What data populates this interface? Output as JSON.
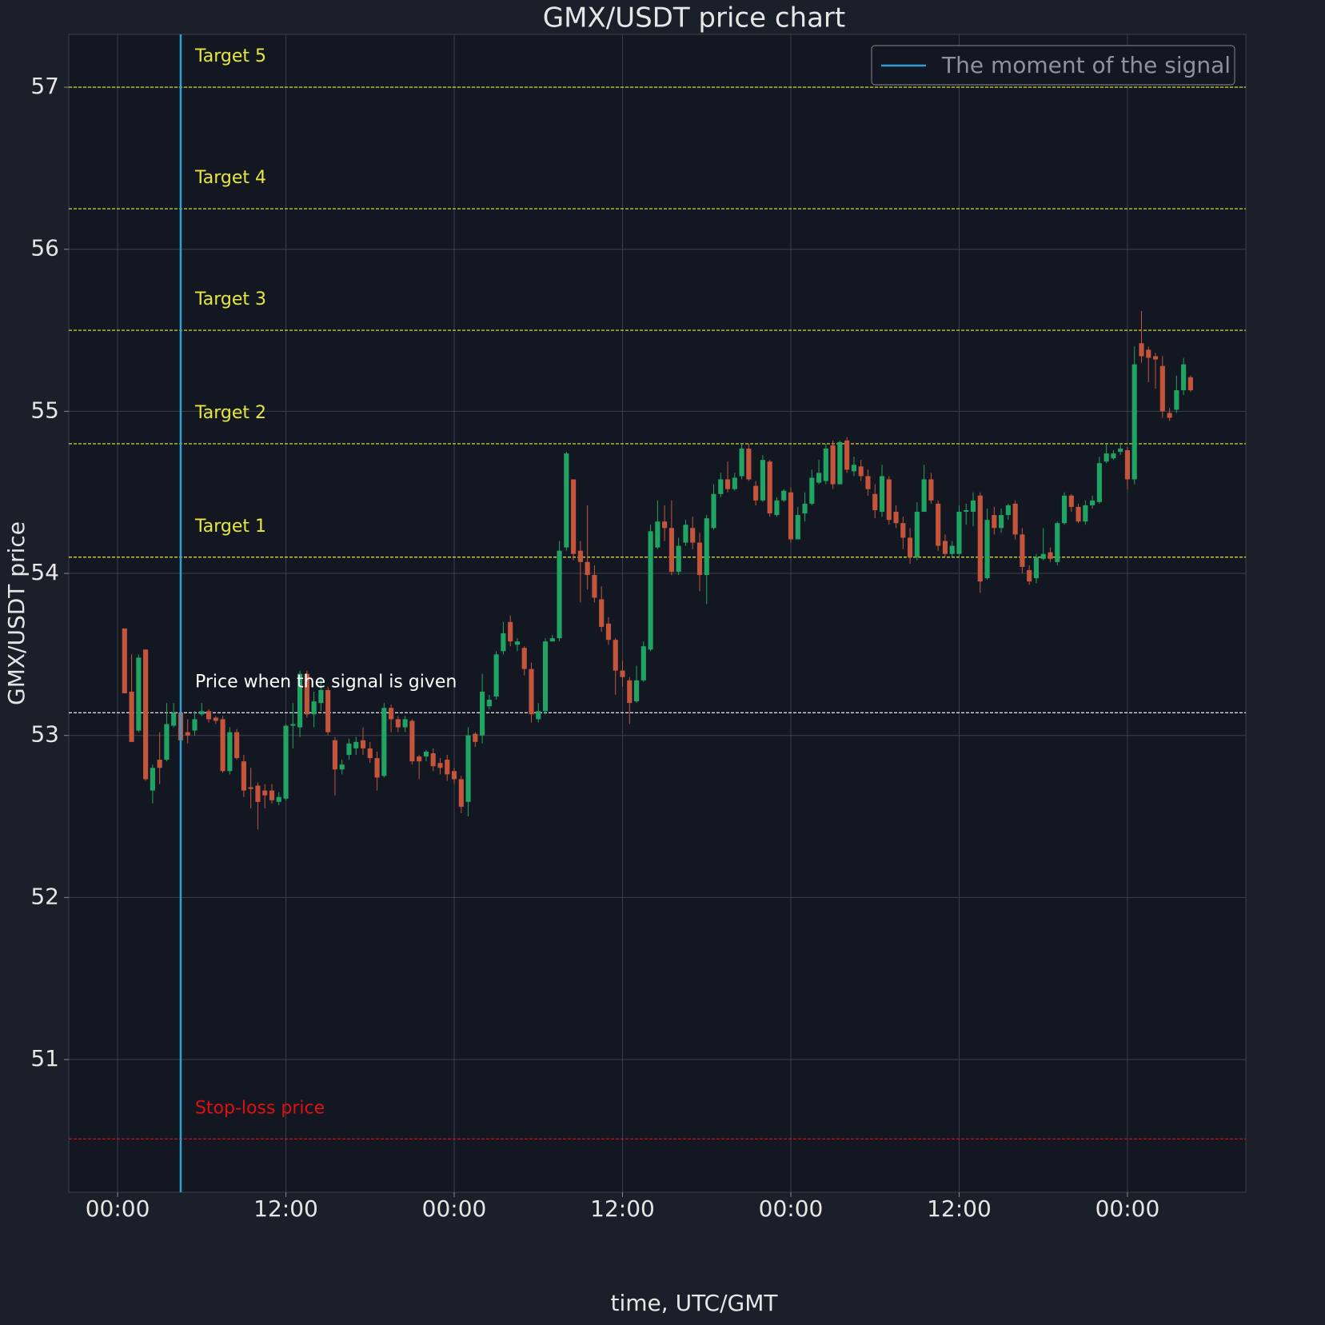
{
  "chart_data": {
    "type": "candlestick",
    "title": "GMX/USDT price chart",
    "xlabel": "time, UTC/GMT",
    "ylabel": "GMX/USDT price",
    "xlim": [
      -3.48,
      80.44
    ],
    "ylim": [
      50.181,
      57.326
    ],
    "xticks": [
      {
        "value": 0,
        "label": "00:00"
      },
      {
        "value": 12,
        "label": "12:00"
      },
      {
        "value": 24,
        "label": "00:00"
      },
      {
        "value": 36,
        "label": "12:00"
      },
      {
        "value": 48,
        "label": "00:00"
      },
      {
        "value": 60,
        "label": "12:00"
      },
      {
        "value": 72,
        "label": "00:00"
      }
    ],
    "yticks": [
      51,
      52,
      53,
      54,
      55,
      56,
      57
    ],
    "grid": true,
    "legend_position": "upper right",
    "up_color": "#1fa463",
    "down_color": "#c4553c",
    "signal": {
      "name": "The moment of the signal",
      "x": 4.5,
      "color": "#2e9fda"
    },
    "levels": [
      {
        "label": "Target 5",
        "value": 57.0,
        "color": "#e8e83c"
      },
      {
        "label": "Target 4",
        "value": 56.25,
        "color": "#e8e83c"
      },
      {
        "label": "Target 3",
        "value": 55.5,
        "color": "#e8e83c"
      },
      {
        "label": "Target 2",
        "value": 54.8,
        "color": "#e8e83c"
      },
      {
        "label": "Target 1",
        "value": 54.1,
        "color": "#e8e83c"
      },
      {
        "label": "Price when the signal is given",
        "value": 53.14,
        "color": "#ffffff"
      },
      {
        "label": "Stop-loss price",
        "value": 50.51,
        "color": "#e01010"
      }
    ],
    "series": [
      {
        "x": [
          0.5,
          1,
          1.5,
          2,
          2.5,
          3,
          3.5,
          4,
          4.5,
          5,
          5.5,
          6,
          6.5,
          7,
          7.5,
          8,
          8.5,
          9,
          9.5,
          10,
          10.5,
          11,
          11.5,
          12,
          12.5,
          13,
          13.5,
          14,
          14.5,
          15,
          15.5,
          16,
          16.5,
          17,
          17.5,
          18,
          18.5,
          19,
          19.5,
          20,
          20.5,
          21,
          21.5,
          22,
          22.5,
          23,
          23.5,
          24,
          24.5,
          25,
          25.5,
          26,
          26.5,
          27,
          27.5,
          28,
          28.5,
          29,
          29.5,
          30,
          30.5,
          31,
          31.5,
          32,
          32.5,
          33,
          33.5,
          34,
          34.5,
          35,
          35.5,
          36,
          36.5,
          37,
          37.5,
          38,
          38.5,
          39,
          39.5,
          40,
          40.5,
          41,
          41.5,
          42,
          42.5,
          43,
          43.5,
          44,
          44.5,
          45,
          45.5,
          46,
          46.5,
          47,
          47.5,
          48,
          48.5,
          49,
          49.5,
          50,
          50.5,
          51,
          51.5,
          52,
          52.5,
          53,
          53.5,
          54,
          54.5,
          55,
          55.5,
          56,
          56.5,
          57,
          57.5,
          58,
          58.5,
          59,
          59.5,
          60,
          60.5,
          61,
          61.5,
          62,
          62.5,
          63,
          63.5,
          64,
          64.5,
          65,
          65.5,
          66,
          66.5,
          67,
          67.5,
          68,
          68.5,
          69,
          69.5,
          70,
          70.5,
          71,
          71.5,
          72,
          72.5,
          73,
          73.5,
          74,
          74.5,
          75,
          75.5,
          76,
          76.5
        ],
        "open": [
          53.66,
          53.27,
          53.03,
          53.53,
          52.66,
          52.85,
          52.85,
          53.06,
          53.14,
          53.02,
          53.03,
          53.13,
          53.15,
          53.11,
          53.1,
          52.78,
          53.02,
          52.84,
          52.68,
          52.69,
          52.66,
          52.66,
          52.59,
          52.61,
          53.06,
          53.05,
          53.38,
          53.13,
          53.2,
          53.28,
          52.97,
          52.79,
          52.88,
          52.92,
          52.97,
          52.92,
          52.86,
          52.75,
          53.17,
          53.1,
          53.05,
          53.09,
          52.87,
          52.87,
          52.89,
          52.83,
          52.85,
          52.78,
          52.73,
          52.59,
          53.01,
          53.0,
          53.18,
          53.24,
          53.52,
          53.7,
          53.56,
          53.54,
          53.41,
          53.1,
          53.15,
          53.58,
          53.6,
          54.16,
          54.58,
          54.14,
          54.07,
          53.99,
          53.84,
          53.69,
          53.59,
          53.4,
          53.34,
          53.21,
          53.34,
          53.53,
          54.16,
          54.32,
          54.28,
          54.01,
          54.19,
          54.28,
          54.19,
          53.99,
          54.28,
          54.49,
          54.58,
          54.52,
          54.6,
          54.77,
          54.54,
          54.45,
          54.69,
          54.36,
          54.45,
          54.5,
          54.21,
          54.37,
          54.43,
          54.56,
          54.57,
          54.79,
          54.55,
          54.82,
          54.63,
          54.66,
          54.6,
          54.49,
          54.38,
          54.58,
          54.38,
          54.31,
          54.22,
          54.1,
          54.38,
          54.58,
          54.43,
          54.2,
          54.12,
          54.12,
          54.38,
          54.38,
          54.48,
          53.97,
          54.36,
          54.28,
          54.36,
          54.43,
          54.24,
          54.02,
          53.97,
          54.09,
          54.13,
          54.07,
          54.31,
          54.48,
          54.41,
          54.32,
          54.42,
          54.44,
          54.69,
          54.71,
          54.75,
          54.76,
          54.58,
          55.42,
          55.38,
          55.34,
          55.28,
          54.99,
          55.01,
          55.13,
          55.21
        ],
        "high": [
          53.66,
          53.5,
          53.5,
          53.53,
          52.82,
          53.02,
          53.2,
          53.2,
          53.18,
          53.1,
          53.15,
          53.2,
          53.16,
          53.12,
          53.12,
          53.05,
          53.04,
          52.88,
          52.8,
          52.71,
          52.7,
          52.7,
          52.65,
          53.07,
          53.2,
          53.4,
          53.4,
          53.27,
          53.36,
          53.3,
          52.99,
          52.85,
          52.98,
          52.99,
          53.05,
          52.96,
          52.9,
          53.2,
          53.19,
          53.12,
          53.12,
          53.1,
          52.88,
          52.91,
          52.92,
          52.86,
          52.88,
          52.8,
          52.75,
          53.05,
          53.02,
          53.38,
          53.25,
          53.52,
          53.7,
          53.74,
          53.6,
          53.55,
          53.45,
          53.2,
          53.6,
          53.62,
          54.2,
          54.75,
          54.58,
          54.2,
          54.42,
          54.05,
          53.92,
          53.73,
          53.6,
          53.46,
          53.36,
          53.43,
          53.58,
          54.3,
          54.45,
          54.42,
          54.45,
          54.22,
          54.33,
          54.35,
          54.25,
          54.36,
          54.55,
          54.62,
          54.69,
          54.62,
          54.8,
          54.8,
          54.57,
          54.73,
          54.7,
          54.47,
          54.52,
          54.53,
          54.41,
          54.5,
          54.64,
          54.7,
          54.8,
          54.82,
          54.82,
          54.84,
          54.72,
          54.7,
          54.64,
          54.55,
          54.67,
          54.6,
          54.42,
          54.35,
          54.28,
          54.44,
          54.67,
          54.62,
          54.45,
          54.24,
          54.2,
          54.42,
          54.43,
          54.5,
          54.5,
          54.4,
          54.41,
          54.4,
          54.43,
          54.45,
          54.28,
          54.05,
          54.12,
          54.28,
          54.16,
          54.32,
          54.5,
          54.49,
          54.43,
          54.45,
          54.48,
          54.72,
          54.8,
          54.76,
          54.8,
          54.78,
          55.4,
          55.62,
          55.4,
          55.36,
          55.34,
          55.02,
          55.22,
          55.33,
          55.22
        ],
        "low": [
          53.26,
          52.96,
          53.02,
          52.72,
          52.58,
          52.7,
          52.84,
          53.05,
          52.95,
          52.95,
          53.0,
          53.12,
          53.08,
          53.07,
          52.77,
          52.76,
          52.85,
          52.62,
          52.55,
          52.42,
          52.55,
          52.58,
          52.57,
          52.6,
          52.92,
          52.99,
          53.11,
          53.05,
          53.15,
          53.0,
          52.63,
          52.76,
          52.85,
          52.88,
          52.88,
          52.83,
          52.66,
          52.74,
          53.02,
          53.02,
          53.02,
          52.82,
          52.73,
          52.84,
          52.78,
          52.76,
          52.72,
          52.7,
          52.52,
          52.5,
          52.93,
          52.95,
          53.16,
          53.22,
          53.5,
          53.55,
          53.52,
          53.37,
          53.08,
          53.08,
          53.13,
          53.58,
          53.58,
          54.14,
          54.08,
          53.82,
          53.9,
          53.82,
          53.64,
          53.56,
          53.25,
          53.3,
          53.07,
          53.2,
          53.33,
          53.52,
          54.15,
          54.2,
          53.99,
          53.99,
          54.17,
          54.15,
          53.89,
          53.81,
          54.27,
          54.47,
          54.5,
          54.51,
          54.58,
          54.57,
          54.42,
          54.44,
          54.35,
          54.35,
          54.44,
          54.19,
          54.21,
          54.32,
          54.42,
          54.55,
          54.55,
          54.52,
          54.55,
          54.62,
          54.6,
          54.57,
          54.48,
          54.34,
          54.35,
          54.3,
          54.28,
          54.15,
          54.06,
          54.08,
          54.38,
          54.43,
          54.14,
          54.1,
          54.1,
          54.1,
          54.3,
          54.29,
          53.88,
          53.96,
          54.24,
          54.25,
          54.33,
          54.21,
          54.0,
          53.93,
          53.94,
          54.08,
          54.07,
          54.05,
          54.3,
          54.38,
          54.31,
          54.3,
          54.4,
          54.43,
          54.68,
          54.7,
          54.73,
          54.52,
          54.55,
          55.3,
          55.18,
          55.14,
          54.96,
          54.94,
          54.99,
          55.1,
          55.12
        ],
        "close": [
          53.26,
          52.96,
          53.48,
          52.73,
          52.8,
          52.8,
          53.07,
          53.14,
          52.97,
          53.0,
          53.1,
          53.15,
          53.1,
          53.09,
          52.78,
          53.02,
          52.86,
          52.66,
          52.67,
          52.59,
          52.63,
          52.6,
          52.62,
          53.06,
          53.07,
          53.38,
          53.13,
          53.21,
          53.28,
          53.02,
          52.79,
          52.82,
          52.95,
          52.96,
          52.92,
          52.86,
          52.74,
          53.17,
          53.1,
          53.05,
          53.1,
          52.84,
          52.84,
          52.9,
          52.81,
          52.8,
          52.76,
          52.73,
          52.56,
          53.0,
          52.96,
          53.27,
          53.22,
          53.5,
          53.63,
          53.58,
          53.58,
          53.41,
          53.13,
          53.15,
          53.58,
          53.6,
          54.14,
          54.74,
          54.12,
          54.07,
          53.99,
          53.85,
          53.67,
          53.59,
          53.4,
          53.36,
          53.2,
          53.34,
          53.55,
          54.26,
          54.32,
          54.28,
          54.01,
          54.17,
          54.3,
          54.19,
          53.99,
          54.34,
          54.49,
          54.58,
          54.52,
          54.59,
          54.77,
          54.58,
          54.45,
          54.7,
          54.37,
          54.45,
          54.51,
          54.21,
          54.36,
          54.43,
          54.59,
          54.62,
          54.77,
          54.55,
          54.81,
          54.64,
          54.67,
          54.6,
          54.52,
          54.39,
          54.6,
          54.33,
          54.31,
          54.22,
          54.1,
          54.38,
          54.58,
          54.45,
          54.17,
          54.12,
          54.17,
          54.38,
          54.39,
          54.45,
          53.95,
          54.33,
          54.28,
          54.36,
          54.42,
          54.24,
          54.04,
          53.95,
          54.1,
          54.12,
          54.09,
          54.31,
          54.48,
          54.41,
          54.32,
          54.42,
          54.45,
          54.68,
          54.74,
          54.74,
          54.77,
          54.58,
          55.29,
          55.34,
          55.33,
          55.32,
          55.0,
          54.96,
          55.13,
          55.29,
          55.13
        ]
      }
    ]
  }
}
